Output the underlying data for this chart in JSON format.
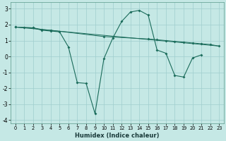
{
  "title": "",
  "xlabel": "Humidex (Indice chaleur)",
  "background_color": "#c5e8e5",
  "grid_color": "#9fcece",
  "line_color": "#1a6b5a",
  "xlim": [
    -0.5,
    23.5
  ],
  "ylim": [
    -4.2,
    3.4
  ],
  "xticks": [
    0,
    1,
    2,
    3,
    4,
    5,
    6,
    7,
    8,
    9,
    10,
    11,
    12,
    13,
    14,
    15,
    16,
    17,
    18,
    19,
    20,
    21,
    22,
    23
  ],
  "yticks": [
    -4,
    -3,
    -2,
    -1,
    0,
    1,
    2,
    3
  ],
  "series_line": {
    "x": [
      0,
      23
    ],
    "y": [
      1.85,
      0.65
    ]
  },
  "series_curve": {
    "x": [
      0,
      1,
      2,
      3,
      4,
      5,
      6,
      7,
      8,
      9,
      10,
      11,
      12,
      13,
      14,
      15,
      16,
      17,
      18,
      19,
      20,
      21
    ],
    "y": [
      1.85,
      1.82,
      1.8,
      1.65,
      1.6,
      1.55,
      0.6,
      -1.65,
      -1.7,
      -3.6,
      -0.15,
      1.15,
      2.2,
      2.8,
      2.9,
      2.6,
      0.4,
      0.2,
      -1.2,
      -1.3,
      -0.1,
      0.1
    ]
  },
  "series_straight2": {
    "x": [
      0,
      2,
      3,
      4,
      10,
      15,
      16,
      17,
      18,
      19,
      20,
      21,
      22,
      23
    ],
    "y": [
      1.85,
      1.8,
      1.7,
      1.65,
      1.25,
      1.1,
      1.05,
      1.0,
      0.95,
      0.9,
      0.85,
      0.8,
      0.75,
      0.65
    ]
  }
}
